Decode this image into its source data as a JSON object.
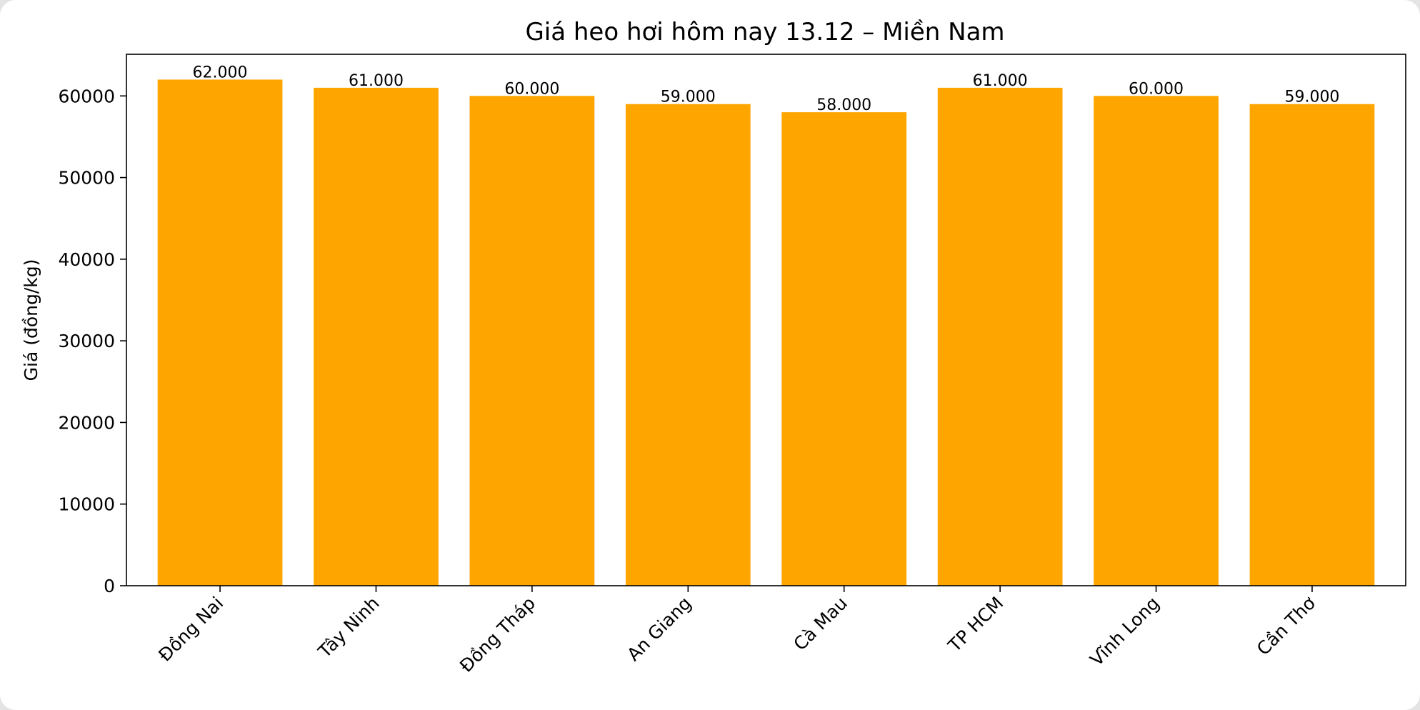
{
  "chart_data": {
    "type": "bar",
    "title": "Giá heo hơi hôm nay 13.12 – Miền Nam",
    "xlabel": "",
    "ylabel": "Giá (đồng/kg)",
    "categories": [
      "Đồng Nai",
      "Tây Ninh",
      "Đồng Tháp",
      "An Giang",
      "Cà Mau",
      "TP HCM",
      "Vĩnh Long",
      "Cần Thơ"
    ],
    "values": [
      62000,
      61000,
      60000,
      59000,
      58000,
      61000,
      60000,
      59000
    ],
    "data_labels": [
      "62.000",
      "61.000",
      "60.000",
      "59.000",
      "58.000",
      "61.000",
      "60.000",
      "59.000"
    ],
    "yticks": [
      0,
      10000,
      20000,
      30000,
      40000,
      50000,
      60000
    ],
    "ylim": [
      0,
      65100
    ],
    "grid": false,
    "bar_color": "#FFA500"
  }
}
